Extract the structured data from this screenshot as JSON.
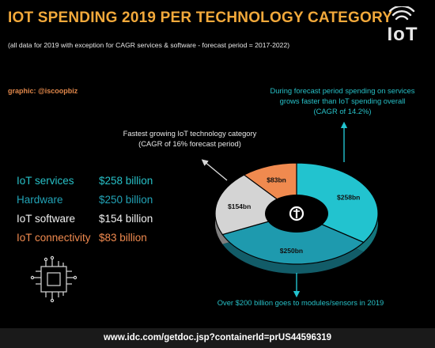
{
  "header": {
    "title": "IOT SPENDING 2019 PER TECHNOLOGY CATEGORY",
    "subtitle": "(all data for 2019 with exception for CAGR services & software - forecast period = 2017-2022)",
    "logo_text": "IoT",
    "credit": "graphic: @iscoopbiz"
  },
  "chart_data": {
    "type": "pie",
    "title": "IOT SPENDING 2019 PER TECHNOLOGY CATEGORY",
    "unit": "billion USD",
    "slices": [
      {
        "name": "IoT services",
        "value": 258,
        "label": "$258bn",
        "legend_value": "$258 billion",
        "color": "#22c3cf",
        "text_color": "#27c0c7"
      },
      {
        "name": "Hardware",
        "value": 250,
        "label": "$250bn",
        "legend_value": "$250 billion",
        "color": "#1e9aae",
        "text_color": "#22a3b6"
      },
      {
        "name": "IoT software",
        "value": 154,
        "label": "$154bn",
        "legend_value": "$154 billion",
        "color": "#d4d4d4",
        "text_color": "#f0f0f0"
      },
      {
        "name": "IoT connectivity",
        "value": 83,
        "label": "$83bn",
        "legend_value": "$83 billion",
        "color": "#f08a4f",
        "text_color": "#f08a4f"
      }
    ],
    "annotations": [
      "During forecast period spending on services grows faster than IoT spending overall (CAGR of 14.2%)",
      "Fastest growing IoT technology category (CAGR of 16% forecast period)",
      "Over $200 billion goes to modules/sensors in 2019"
    ]
  },
  "notes": {
    "services": "During forecast period spending on services grows faster than IoT spending overall (CAGR of 14.2%)",
    "fastest": "Fastest growing IoT technology category (CAGR of 16% forecast period)",
    "modules": "Over $200 billion goes to modules/sensors in 2019"
  },
  "footer": {
    "url": "www.idc.com/getdoc.jsp?containerId=prUS44596319"
  },
  "icons": [
    "iot-wifi-logo-icon",
    "iot-center-icon",
    "circuit-chip-icon"
  ]
}
